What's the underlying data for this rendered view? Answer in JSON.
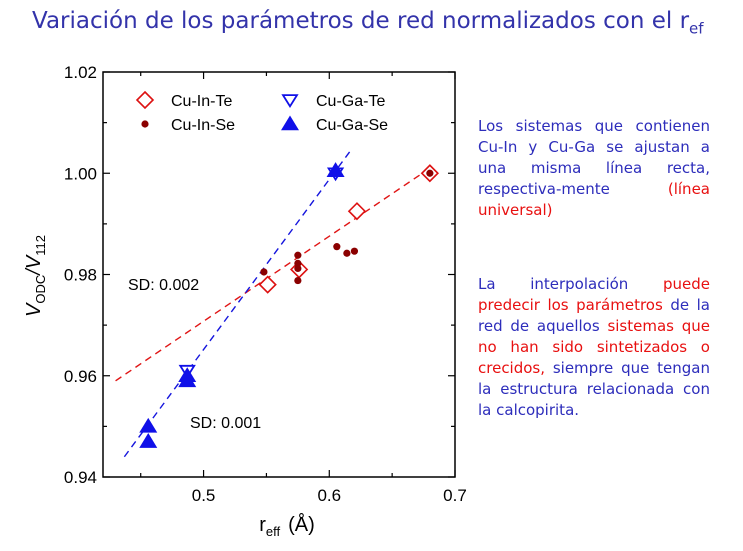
{
  "slide": {
    "title_main": "Variación de los parámetros de red normalizados con  el r",
    "title_sub": "ef"
  },
  "text": {
    "p1_a": "Los sistemas que contienen Cu-In y Cu-Ga se ajustan a una misma línea recta, respectiva-mente ",
    "p1_b": "(línea universal)",
    "p2_a": "La interpolación ",
    "p2_b": "puede predecir los parámetros",
    "p2_c": " de la red de aquellos ",
    "p2_d": "sistemas que no han sido sintetizados o crecidos,",
    "p2_e": " siempre que tengan la estructura relacionada con la calcopirita."
  },
  "colors": {
    "text_blue": "#2d2dbb",
    "text_red": "#e81010",
    "cu_in": "#dd1111",
    "cu_in_se": "#8b0000",
    "cu_ga": "#1010e8",
    "fit_red": "#e01515",
    "fit_blue": "#1515dd"
  },
  "chart_data": {
    "type": "scatter",
    "xlabel_main": "r",
    "xlabel_sub": "eff",
    "xlabel_unit": "(Å)",
    "ylabel_v": "V",
    "ylabel_sub1": "ODC",
    "ylabel_slash": "/V",
    "ylabel_sub2": "112",
    "xlim": [
      0.42,
      0.7
    ],
    "ylim": [
      0.94,
      1.02
    ],
    "xticks": [
      0.5,
      0.6,
      0.7
    ],
    "xtick_labels": [
      "0.5",
      "0.6",
      "0.7"
    ],
    "yticks": [
      0.94,
      0.96,
      0.98,
      1.0,
      1.02
    ],
    "ytick_labels": [
      "0.94",
      "0.96",
      "0.98",
      "1.00",
      "1.02"
    ],
    "legend_position": "top-left",
    "series": [
      {
        "name": "Cu-In-Te",
        "marker": "diamond-open",
        "color": "#dd1111",
        "points": [
          [
            0.551,
            0.978
          ],
          [
            0.576,
            0.981
          ],
          [
            0.622,
            0.9925
          ],
          [
            0.68,
            1.0
          ]
        ]
      },
      {
        "name": "Cu-In-Se",
        "marker": "circle-filled",
        "color": "#8b0000",
        "points": [
          [
            0.548,
            0.9805
          ],
          [
            0.575,
            0.9838
          ],
          [
            0.575,
            0.9822
          ],
          [
            0.575,
            0.9812
          ],
          [
            0.575,
            0.9788
          ],
          [
            0.606,
            0.9855
          ],
          [
            0.614,
            0.9842
          ],
          [
            0.62,
            0.9846
          ],
          [
            0.68,
            1.0
          ]
        ]
      },
      {
        "name": "Cu-Ga-Te",
        "marker": "triangle-down-open",
        "color": "#1010e8",
        "points": [
          [
            0.487,
            0.961
          ],
          [
            0.605,
            1.0
          ]
        ]
      },
      {
        "name": "Cu-Ga-Se",
        "marker": "triangle-up-filled",
        "color": "#1010e8",
        "points": [
          [
            0.456,
            0.95
          ],
          [
            0.456,
            0.947
          ],
          [
            0.487,
            0.959
          ],
          [
            0.487,
            0.96
          ],
          [
            0.605,
            1.0005
          ]
        ]
      }
    ],
    "fits": [
      {
        "id": "in",
        "x": [
          0.43,
          0.68
        ],
        "y": [
          0.959,
          1.001
        ],
        "color": "#e01515",
        "label": "SD: 0.002"
      },
      {
        "id": "ga",
        "x": [
          0.437,
          0.617
        ],
        "y": [
          0.944,
          1.0045
        ],
        "color": "#1515dd",
        "label": "SD: 0.001"
      }
    ]
  }
}
